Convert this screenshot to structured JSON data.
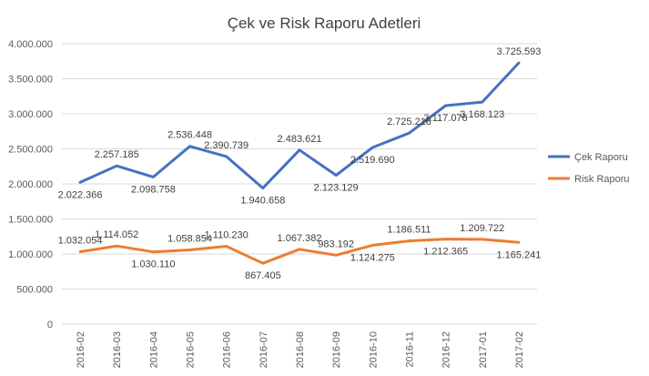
{
  "chart_data": {
    "type": "line",
    "title": "Çek ve Risk Raporu Adetleri",
    "xlabel": "",
    "ylabel": "",
    "ylim": [
      0,
      4000000
    ],
    "y_ticks": [
      "0",
      "500.000",
      "1.000.000",
      "1.500.000",
      "2.000.000",
      "2.500.000",
      "3.000.000",
      "3.500.000",
      "4.000.000"
    ],
    "y_tick_values": [
      0,
      500000,
      1000000,
      1500000,
      2000000,
      2500000,
      3000000,
      3500000,
      4000000
    ],
    "categories": [
      "2016-02",
      "2016-03",
      "2016-04",
      "2016-05",
      "2016-06",
      "2016-07",
      "2016-08",
      "2016-09",
      "2016-10",
      "2016-11",
      "2016-12",
      "2017-01",
      "2017-02"
    ],
    "grid": true,
    "legend_position": "right",
    "series": [
      {
        "name": "Çek Raporu",
        "color": "#4472c4",
        "values": [
          2022366,
          2257185,
          2098758,
          2536448,
          2390739,
          1940658,
          2483621,
          2123129,
          2519690,
          2725218,
          3117076,
          3168123,
          3725593
        ],
        "labels": [
          "2.022.366",
          "2.257.185",
          "2.098.758",
          "2.536.448",
          "2.390.739",
          "1.940.658",
          "2.483.621",
          "2.123.129",
          "2.519.690",
          "2.725.218",
          "3.117.076",
          "3.168.123",
          "3.725.593"
        ],
        "label_pos": [
          "below",
          "above",
          "below",
          "above",
          "above",
          "below",
          "above",
          "below",
          "below",
          "above",
          "below",
          "below",
          "above"
        ]
      },
      {
        "name": "Risk Raporu",
        "color": "#ed7d31",
        "values": [
          1032054,
          1114052,
          1030110,
          1058854,
          1110230,
          867405,
          1067382,
          983192,
          1124275,
          1186511,
          1212365,
          1209722,
          1165241
        ],
        "labels": [
          "1.032.054",
          "1.114.052",
          "1.030.110",
          "1.058.854",
          "1.110.230",
          "867.405",
          "1.067.382",
          "983.192",
          "1.124.275",
          "1.186.511",
          "1.212.365",
          "1.209.722",
          "1.165.241"
        ],
        "label_pos": [
          "above",
          "above",
          "below",
          "above",
          "above",
          "below",
          "above",
          "above",
          "below",
          "above",
          "below",
          "above",
          "below"
        ]
      }
    ]
  }
}
